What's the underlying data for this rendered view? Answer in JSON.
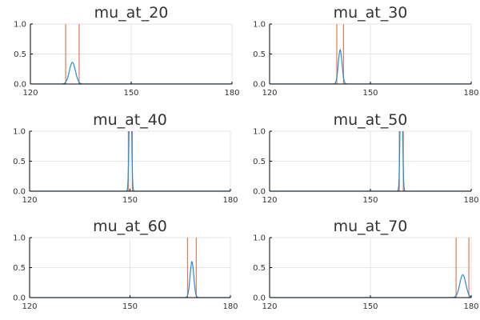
{
  "colors": {
    "density": "#1f8fd6",
    "bounds": "#e87852",
    "axis": "#000000",
    "grid": "#e6e6e6",
    "text": "#333333"
  },
  "chart_data": [
    {
      "type": "line",
      "title": "mu_at_20",
      "xlim": [
        120,
        180
      ],
      "ylim": [
        0,
        1
      ],
      "xticks": [
        "120",
        "150",
        "180"
      ],
      "yticks": [
        "0.0",
        "0.5",
        "1.0"
      ],
      "grid": true,
      "series": [
        {
          "peak_x": 132.5,
          "peak_y": 0.36,
          "width": 0.9
        }
      ],
      "bounds": [
        130.5,
        134.5
      ]
    },
    {
      "type": "line",
      "title": "mu_at_30",
      "xlim": [
        120,
        180
      ],
      "ylim": [
        0,
        1
      ],
      "xticks": [
        "120",
        "150",
        "180"
      ],
      "yticks": [
        "0.0",
        "0.5",
        "1.0"
      ],
      "grid": true,
      "series": [
        {
          "peak_x": 141.0,
          "peak_y": 0.57,
          "width": 0.55
        }
      ],
      "bounds": [
        140.0,
        142.0
      ]
    },
    {
      "type": "line",
      "title": "mu_at_40",
      "xlim": [
        120,
        180
      ],
      "ylim": [
        0,
        1
      ],
      "xticks": [
        "120",
        "150",
        "180"
      ],
      "yticks": [
        "0.0",
        "0.5",
        "1.0"
      ],
      "grid": true,
      "series": [
        {
          "peak_x": 150.1,
          "peak_y": 2.5,
          "width": 0.3
        }
      ],
      "bounds": [
        149.5,
        150.7
      ]
    },
    {
      "type": "line",
      "title": "mu_at_50",
      "xlim": [
        120,
        180
      ],
      "ylim": [
        0,
        1
      ],
      "xticks": [
        "120",
        "150",
        "180"
      ],
      "yticks": [
        "0.0",
        "0.5",
        "1.0"
      ],
      "grid": true,
      "series": [
        {
          "peak_x": 159.2,
          "peak_y": 2.5,
          "width": 0.3
        }
      ],
      "bounds": [
        158.6,
        159.8
      ]
    },
    {
      "type": "line",
      "title": "mu_at_60",
      "xlim": [
        120,
        180
      ],
      "ylim": [
        0,
        1
      ],
      "xticks": [
        "120",
        "150",
        "180"
      ],
      "yticks": [
        "0.0",
        "0.5",
        "1.0"
      ],
      "grid": true,
      "series": [
        {
          "peak_x": 168.5,
          "peak_y": 0.6,
          "width": 0.55
        }
      ],
      "bounds": [
        167.2,
        169.8
      ]
    },
    {
      "type": "line",
      "title": "mu_at_70",
      "xlim": [
        120,
        180
      ],
      "ylim": [
        0,
        1
      ],
      "xticks": [
        "120",
        "150",
        "180"
      ],
      "yticks": [
        "0.0",
        "0.5",
        "1.0"
      ],
      "grid": true,
      "series": [
        {
          "peak_x": 177.5,
          "peak_y": 0.38,
          "width": 0.9
        }
      ],
      "bounds": [
        175.5,
        179.3
      ]
    }
  ]
}
